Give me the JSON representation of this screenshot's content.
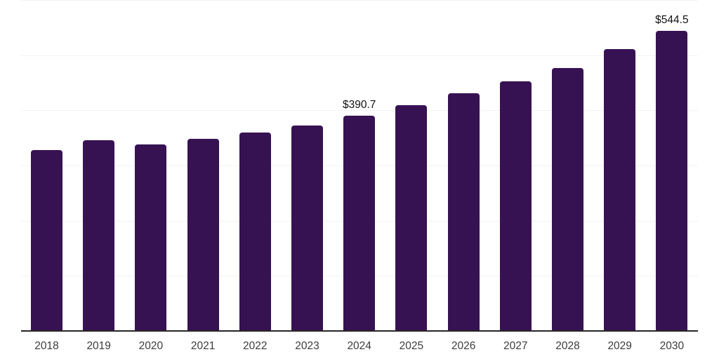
{
  "chart_data": {
    "type": "bar",
    "title": "",
    "xlabel": "",
    "ylabel": "",
    "categories": [
      "2018",
      "2019",
      "2020",
      "2021",
      "2022",
      "2023",
      "2024",
      "2025",
      "2026",
      "2027",
      "2028",
      "2029",
      "2030"
    ],
    "values": [
      327.4,
      345.6,
      338.0,
      348.5,
      359.2,
      372.3,
      390.7,
      410.0,
      430.8,
      453.2,
      476.9,
      511.0,
      544.5
    ],
    "data_labels": [
      {
        "year": "2024",
        "text": "$390.7"
      },
      {
        "year": "2030",
        "text": "$544.5"
      }
    ],
    "ylim": [
      0,
      600
    ],
    "gridline_values": [
      100,
      200,
      300,
      400,
      500,
      600
    ],
    "grid": "horizontal-only, no y tick labels",
    "legend": "none",
    "colors": {
      "bar": "#371253",
      "gridline": "#f2f2f2",
      "axis_line": "#262626",
      "tick_label": "#3c3c3c",
      "data_label": "#111111",
      "background": "#ffffff"
    }
  }
}
